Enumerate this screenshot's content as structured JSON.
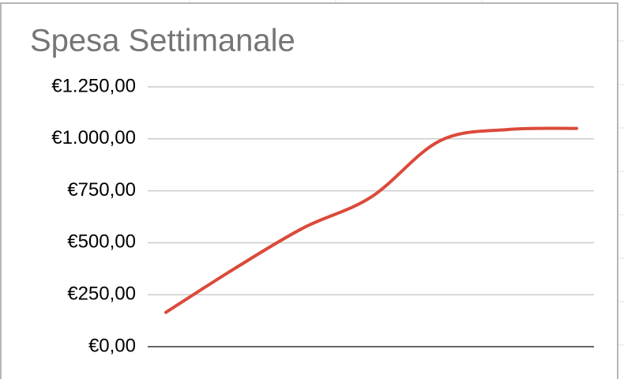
{
  "chart_data": {
    "type": "line",
    "title": "Spesa Settimanale",
    "categories": [
      null,
      null,
      null,
      null,
      null,
      null,
      null
    ],
    "series": [
      {
        "color": "#db4a3a",
        "values": [
          165,
          375,
          570,
          720,
          990,
          1045,
          1050
        ]
      }
    ],
    "ylim": [
      0,
      1250
    ],
    "yticks": [
      {
        "value": 0,
        "label": "€0,00"
      },
      {
        "value": 250,
        "label": "€250,00"
      },
      {
        "value": 500,
        "label": "€500,00"
      },
      {
        "value": 750,
        "label": "€750,00"
      },
      {
        "value": 1000,
        "label": "€1.000,00"
      },
      {
        "value": 1250,
        "label": "€1.250,00"
      }
    ],
    "grid": true
  }
}
